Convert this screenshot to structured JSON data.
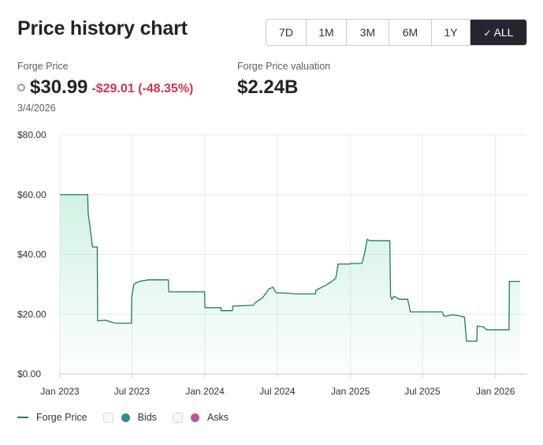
{
  "header": {
    "title": "Price history chart"
  },
  "ranges": [
    {
      "label": "7D",
      "active": false
    },
    {
      "label": "1M",
      "active": false
    },
    {
      "label": "3M",
      "active": false
    },
    {
      "label": "6M",
      "active": false
    },
    {
      "label": "1Y",
      "active": false
    },
    {
      "label": "ALL",
      "active": true
    }
  ],
  "stats": {
    "price_label": "Forge Price",
    "price": "$30.99",
    "change": "-$29.01 (-48.35%)",
    "date": "3/4/2026",
    "valuation_label": "Forge Price valuation",
    "valuation": "$2.24B"
  },
  "legend": {
    "price_label": "Forge Price",
    "bids_label": "Bids",
    "asks_label": "Asks",
    "price_color": "#1a7f56",
    "bids_color": "#2f8a99",
    "asks_color": "#b5579f"
  },
  "chart_data": {
    "type": "area",
    "series": [
      {
        "name": "Forge Price",
        "color": "#1a7f56",
        "points": [
          [
            "2023-01-01",
            60.0
          ],
          [
            "2023-03-12",
            60.0
          ],
          [
            "2023-03-13",
            54.0
          ],
          [
            "2023-03-18",
            49.0
          ],
          [
            "2023-03-24",
            42.5
          ],
          [
            "2023-04-05",
            42.5
          ],
          [
            "2023-04-06",
            17.8
          ],
          [
            "2023-04-25",
            18.0
          ],
          [
            "2023-05-20",
            17.0
          ],
          [
            "2023-06-30",
            17.0
          ],
          [
            "2023-07-01",
            26.0
          ],
          [
            "2023-07-06",
            30.0
          ],
          [
            "2023-07-12",
            30.5
          ],
          [
            "2023-07-20",
            31.0
          ],
          [
            "2023-08-12",
            31.5
          ],
          [
            "2023-10-01",
            31.5
          ],
          [
            "2023-10-02",
            27.5
          ],
          [
            "2023-12-31",
            27.5
          ],
          [
            "2024-01-01",
            22.2
          ],
          [
            "2024-02-10",
            22.2
          ],
          [
            "2024-02-11",
            21.2
          ],
          [
            "2024-03-10",
            21.2
          ],
          [
            "2024-03-11",
            22.7
          ],
          [
            "2024-05-01",
            23.0
          ],
          [
            "2024-05-08",
            24.0
          ],
          [
            "2024-05-25",
            25.5
          ],
          [
            "2024-06-05",
            27.5
          ],
          [
            "2024-06-10",
            28.5
          ],
          [
            "2024-06-20",
            29.0
          ],
          [
            "2024-06-28",
            27.2
          ],
          [
            "2024-08-01",
            27.0
          ],
          [
            "2024-08-15",
            26.8
          ],
          [
            "2024-10-05",
            26.8
          ],
          [
            "2024-10-06",
            28.0
          ],
          [
            "2024-10-28",
            29.5
          ],
          [
            "2024-11-10",
            30.5
          ],
          [
            "2024-11-25",
            32.0
          ],
          [
            "2024-12-01",
            36.8
          ],
          [
            "2024-12-31",
            36.8
          ],
          [
            "2025-01-01",
            37.0
          ],
          [
            "2025-01-30",
            37.0
          ],
          [
            "2025-02-05",
            40.0
          ],
          [
            "2025-02-12",
            45.0
          ],
          [
            "2025-02-20",
            44.6
          ],
          [
            "2025-04-10",
            44.6
          ],
          [
            "2025-04-12",
            26.0
          ],
          [
            "2025-04-15",
            25.0
          ],
          [
            "2025-04-20",
            26.0
          ],
          [
            "2025-05-05",
            25.0
          ],
          [
            "2025-05-25",
            25.0
          ],
          [
            "2025-06-01",
            20.8
          ],
          [
            "2025-08-20",
            20.8
          ],
          [
            "2025-08-25",
            19.3
          ],
          [
            "2025-09-15",
            19.8
          ],
          [
            "2025-10-01",
            19.5
          ],
          [
            "2025-10-15",
            19.0
          ],
          [
            "2025-10-20",
            11.0
          ],
          [
            "2025-11-15",
            11.0
          ],
          [
            "2025-11-16",
            16.0
          ],
          [
            "2025-12-01",
            15.8
          ],
          [
            "2025-12-10",
            14.8
          ],
          [
            "2026-02-04",
            14.8
          ],
          [
            "2026-02-05",
            30.99
          ],
          [
            "2026-03-04",
            30.99
          ]
        ]
      }
    ],
    "x_tick_labels": [
      "Jan 2023",
      "Jul 2023",
      "Jan 2024",
      "Jul 2024",
      "Jan 2025",
      "Jul 2025",
      "Jan 2026"
    ],
    "x_ticks": [
      "2023-01-01",
      "2023-07-01",
      "2024-01-01",
      "2024-07-01",
      "2025-01-01",
      "2025-07-01",
      "2026-01-01"
    ],
    "xlim": [
      "2023-01-01",
      "2026-03-04"
    ],
    "y_tick_labels": [
      "$0.00",
      "$20.00",
      "$40.00",
      "$60.00",
      "$80.00"
    ],
    "y_ticks": [
      0,
      20,
      40,
      60,
      80
    ],
    "ylim": [
      0,
      80
    ],
    "grid": true,
    "legend": "bottom-left"
  }
}
